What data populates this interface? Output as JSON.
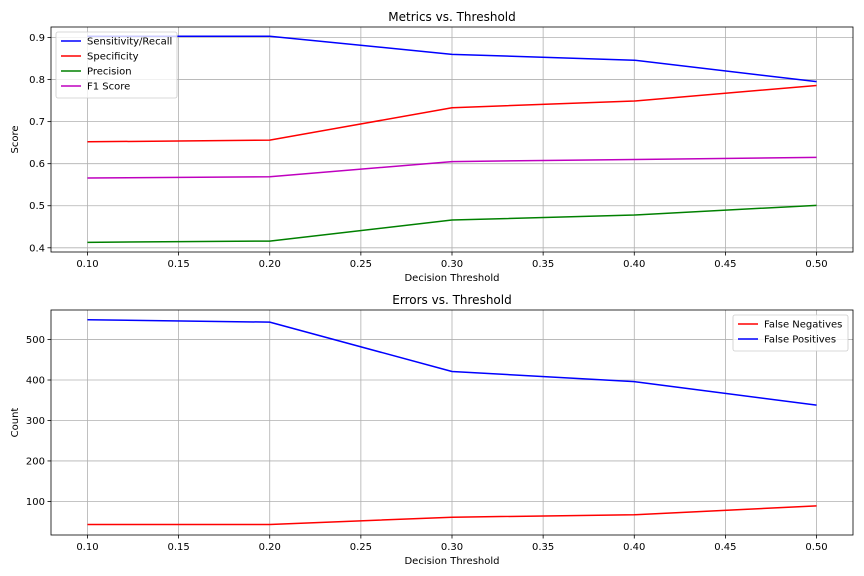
{
  "chart_data": [
    {
      "type": "line",
      "title": "Metrics vs. Threshold",
      "xlabel": "Decision Threshold",
      "ylabel": "Score",
      "x": [
        0.1,
        0.2,
        0.3,
        0.4,
        0.5
      ],
      "xlim": [
        0.08,
        0.52
      ],
      "ylim": [
        0.39,
        0.925
      ],
      "xticks": [
        "0.10",
        "0.15",
        "0.20",
        "0.25",
        "0.30",
        "0.35",
        "0.40",
        "0.45",
        "0.50"
      ],
      "yticks": [
        "0.4",
        "0.5",
        "0.6",
        "0.7",
        "0.8",
        "0.9"
      ],
      "grid": true,
      "legend_position": "upper-left",
      "series": [
        {
          "name": "Sensitivity/Recall",
          "color": "#0000ff",
          "values": [
            0.903,
            0.903,
            0.86,
            0.846,
            0.795
          ]
        },
        {
          "name": "Specificity",
          "color": "#ff0000",
          "values": [
            0.652,
            0.656,
            0.733,
            0.749,
            0.786
          ]
        },
        {
          "name": "Precision",
          "color": "#008000",
          "values": [
            0.413,
            0.416,
            0.466,
            0.478,
            0.501
          ]
        },
        {
          "name": "F1 Score",
          "color": "#bf00bf",
          "values": [
            0.566,
            0.569,
            0.605,
            0.61,
            0.615
          ]
        }
      ]
    },
    {
      "type": "line",
      "title": "Errors vs. Threshold",
      "xlabel": "Decision Threshold",
      "ylabel": "Count",
      "x": [
        0.1,
        0.2,
        0.3,
        0.4,
        0.5
      ],
      "xlim": [
        0.08,
        0.52
      ],
      "ylim": [
        17,
        573
      ],
      "xticks": [
        "0.10",
        "0.15",
        "0.20",
        "0.25",
        "0.30",
        "0.35",
        "0.40",
        "0.45",
        "0.50"
      ],
      "yticks": [
        "100",
        "200",
        "300",
        "400",
        "500"
      ],
      "grid": true,
      "legend_position": "upper-right",
      "series": [
        {
          "name": "False Negatives",
          "color": "#ff0000",
          "values": [
            43,
            43,
            61,
            67,
            89
          ]
        },
        {
          "name": "False Positives",
          "color": "#0000ff",
          "values": [
            549,
            543,
            421,
            396,
            338
          ]
        }
      ]
    }
  ]
}
